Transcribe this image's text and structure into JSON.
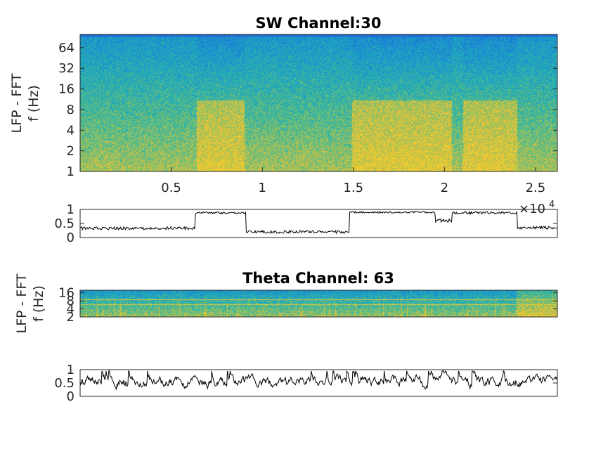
{
  "figure": {
    "sw_title": "SW Channel:30",
    "theta_title": "Theta Channel: 63",
    "ylabel_line1": "LFP - FFT",
    "ylabel_line2": "f (Hz)",
    "x_exponent_base": "×10",
    "x_exponent_power": "4"
  },
  "chart_data": [
    {
      "id": "sw-spectrogram",
      "type": "heatmap",
      "title": "SW Channel:30",
      "ylabel": "LFP - FFT f (Hz)",
      "yscale": "log2",
      "ylim": [
        1,
        100
      ],
      "yticks": [
        1,
        2,
        4,
        8,
        16,
        32,
        64
      ],
      "ytick_labels": [
        "1",
        "2",
        "4",
        "8",
        "16",
        "32",
        "64"
      ],
      "xlim": [
        0,
        26200
      ],
      "xticks": [
        5000,
        10000,
        15000,
        20000,
        25000
      ],
      "xtick_labels": [
        "0.5",
        "1",
        "1.5",
        "2",
        "2.5"
      ],
      "x_multiplier": "x10^4",
      "high_power_epochs": [
        [
          6400,
          9000
        ],
        [
          14900,
          20400
        ],
        [
          21000,
          24000
        ]
      ],
      "colormap": [
        "#1f56c8",
        "#1e8fd0",
        "#1fb6b0",
        "#8fc460",
        "#fcc43a",
        "#f9d421"
      ]
    },
    {
      "id": "sw-trace",
      "type": "line",
      "ylim": [
        0,
        1
      ],
      "yticks": [
        0,
        0.5,
        1
      ],
      "ytick_labels": [
        "0",
        "0.5",
        "1"
      ],
      "xlim": [
        0,
        26200
      ],
      "segments": [
        {
          "x": [
            0,
            6300
          ],
          "level": 0.33,
          "noise": 0.05
        },
        {
          "x": [
            6300,
            9100
          ],
          "level": 0.88,
          "noise": 0.04
        },
        {
          "x": [
            9100,
            14800
          ],
          "level": 0.2,
          "noise": 0.05
        },
        {
          "x": [
            14800,
            19500
          ],
          "level": 0.9,
          "noise": 0.03
        },
        {
          "x": [
            19500,
            20400
          ],
          "level": 0.6,
          "noise": 0.06
        },
        {
          "x": [
            20400,
            24000
          ],
          "level": 0.88,
          "noise": 0.04
        },
        {
          "x": [
            24000,
            26200
          ],
          "level": 0.35,
          "noise": 0.05
        }
      ]
    },
    {
      "id": "theta-spectrogram",
      "type": "heatmap",
      "title": "Theta Channel: 63",
      "ylabel": "LFP - FFT f (Hz)",
      "yscale": "log2",
      "ylim": [
        2,
        20
      ],
      "yticks": [
        2,
        4,
        8,
        16
      ],
      "ytick_labels": [
        "2",
        "4",
        "8",
        "16"
      ],
      "xlim": [
        0,
        26200
      ]
    },
    {
      "id": "theta-trace",
      "type": "line",
      "ylim": [
        0,
        1
      ],
      "yticks": [
        0,
        0.5,
        1
      ],
      "ytick_labels": [
        "0",
        "0.5",
        "1"
      ],
      "xlim": [
        0,
        26200
      ],
      "mean_level": 0.55,
      "noise": 0.25
    }
  ]
}
